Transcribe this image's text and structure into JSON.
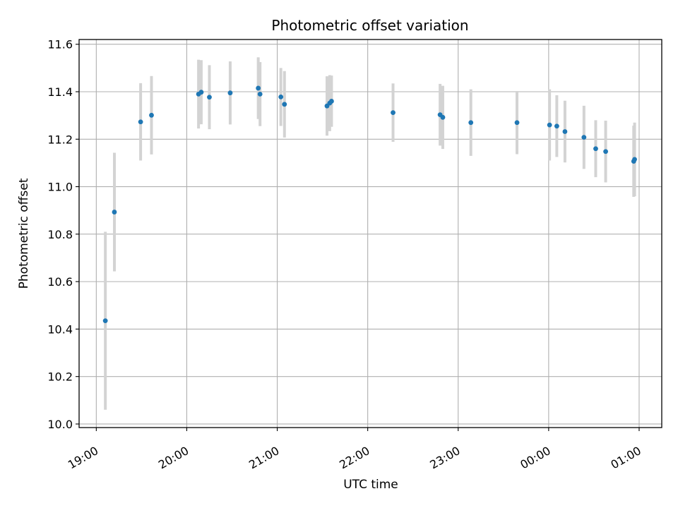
{
  "chart_data": {
    "type": "scatter",
    "title": "Photometric offset variation",
    "xlabel": "UTC time",
    "ylabel": "Photometric offset",
    "x_unit": "UTC hours (values past 24 are the following day)",
    "xlim": [
      18.81,
      25.25
    ],
    "ylim": [
      9.985,
      11.62
    ],
    "grid": true,
    "x_ticks": [
      {
        "value": 19,
        "label": "19:00"
      },
      {
        "value": 20,
        "label": "20:00"
      },
      {
        "value": 21,
        "label": "21:00"
      },
      {
        "value": 22,
        "label": "22:00"
      },
      {
        "value": 23,
        "label": "23:00"
      },
      {
        "value": 24,
        "label": "00:00"
      },
      {
        "value": 25,
        "label": "01:00"
      }
    ],
    "y_ticks": [
      "10.0",
      "10.2",
      "10.4",
      "10.6",
      "10.8",
      "11.0",
      "11.2",
      "11.4",
      "11.6"
    ],
    "point_color": "#1f77b4",
    "errorbar_color": "#d3d3d3",
    "points": [
      {
        "x": 19.1,
        "y": 10.435,
        "err": 0.375
      },
      {
        "x": 19.2,
        "y": 10.893,
        "err": 0.25
      },
      {
        "x": 19.49,
        "y": 11.273,
        "err": 0.163
      },
      {
        "x": 19.61,
        "y": 11.301,
        "err": 0.165
      },
      {
        "x": 20.13,
        "y": 11.39,
        "err": 0.145
      },
      {
        "x": 20.16,
        "y": 11.398,
        "err": 0.135
      },
      {
        "x": 20.25,
        "y": 11.377,
        "err": 0.135
      },
      {
        "x": 20.48,
        "y": 11.395,
        "err": 0.133
      },
      {
        "x": 20.79,
        "y": 11.415,
        "err": 0.13
      },
      {
        "x": 20.81,
        "y": 11.39,
        "err": 0.135
      },
      {
        "x": 21.04,
        "y": 11.378,
        "err": 0.122
      },
      {
        "x": 21.08,
        "y": 11.347,
        "err": 0.14
      },
      {
        "x": 21.55,
        "y": 11.34,
        "err": 0.125
      },
      {
        "x": 21.58,
        "y": 11.352,
        "err": 0.118
      },
      {
        "x": 21.6,
        "y": 11.36,
        "err": 0.108
      },
      {
        "x": 22.28,
        "y": 11.312,
        "err": 0.123
      },
      {
        "x": 22.8,
        "y": 11.303,
        "err": 0.13
      },
      {
        "x": 22.83,
        "y": 11.292,
        "err": 0.133
      },
      {
        "x": 23.14,
        "y": 11.27,
        "err": 0.14
      },
      {
        "x": 23.65,
        "y": 11.27,
        "err": 0.133
      },
      {
        "x": 24.01,
        "y": 11.26,
        "err": 0.15
      },
      {
        "x": 24.09,
        "y": 11.255,
        "err": 0.13
      },
      {
        "x": 24.18,
        "y": 11.232,
        "err": 0.13
      },
      {
        "x": 24.39,
        "y": 11.208,
        "err": 0.133
      },
      {
        "x": 24.52,
        "y": 11.16,
        "err": 0.12
      },
      {
        "x": 24.63,
        "y": 11.148,
        "err": 0.13
      },
      {
        "x": 24.94,
        "y": 11.107,
        "err": 0.15
      },
      {
        "x": 24.95,
        "y": 11.115,
        "err": 0.155
      }
    ]
  }
}
